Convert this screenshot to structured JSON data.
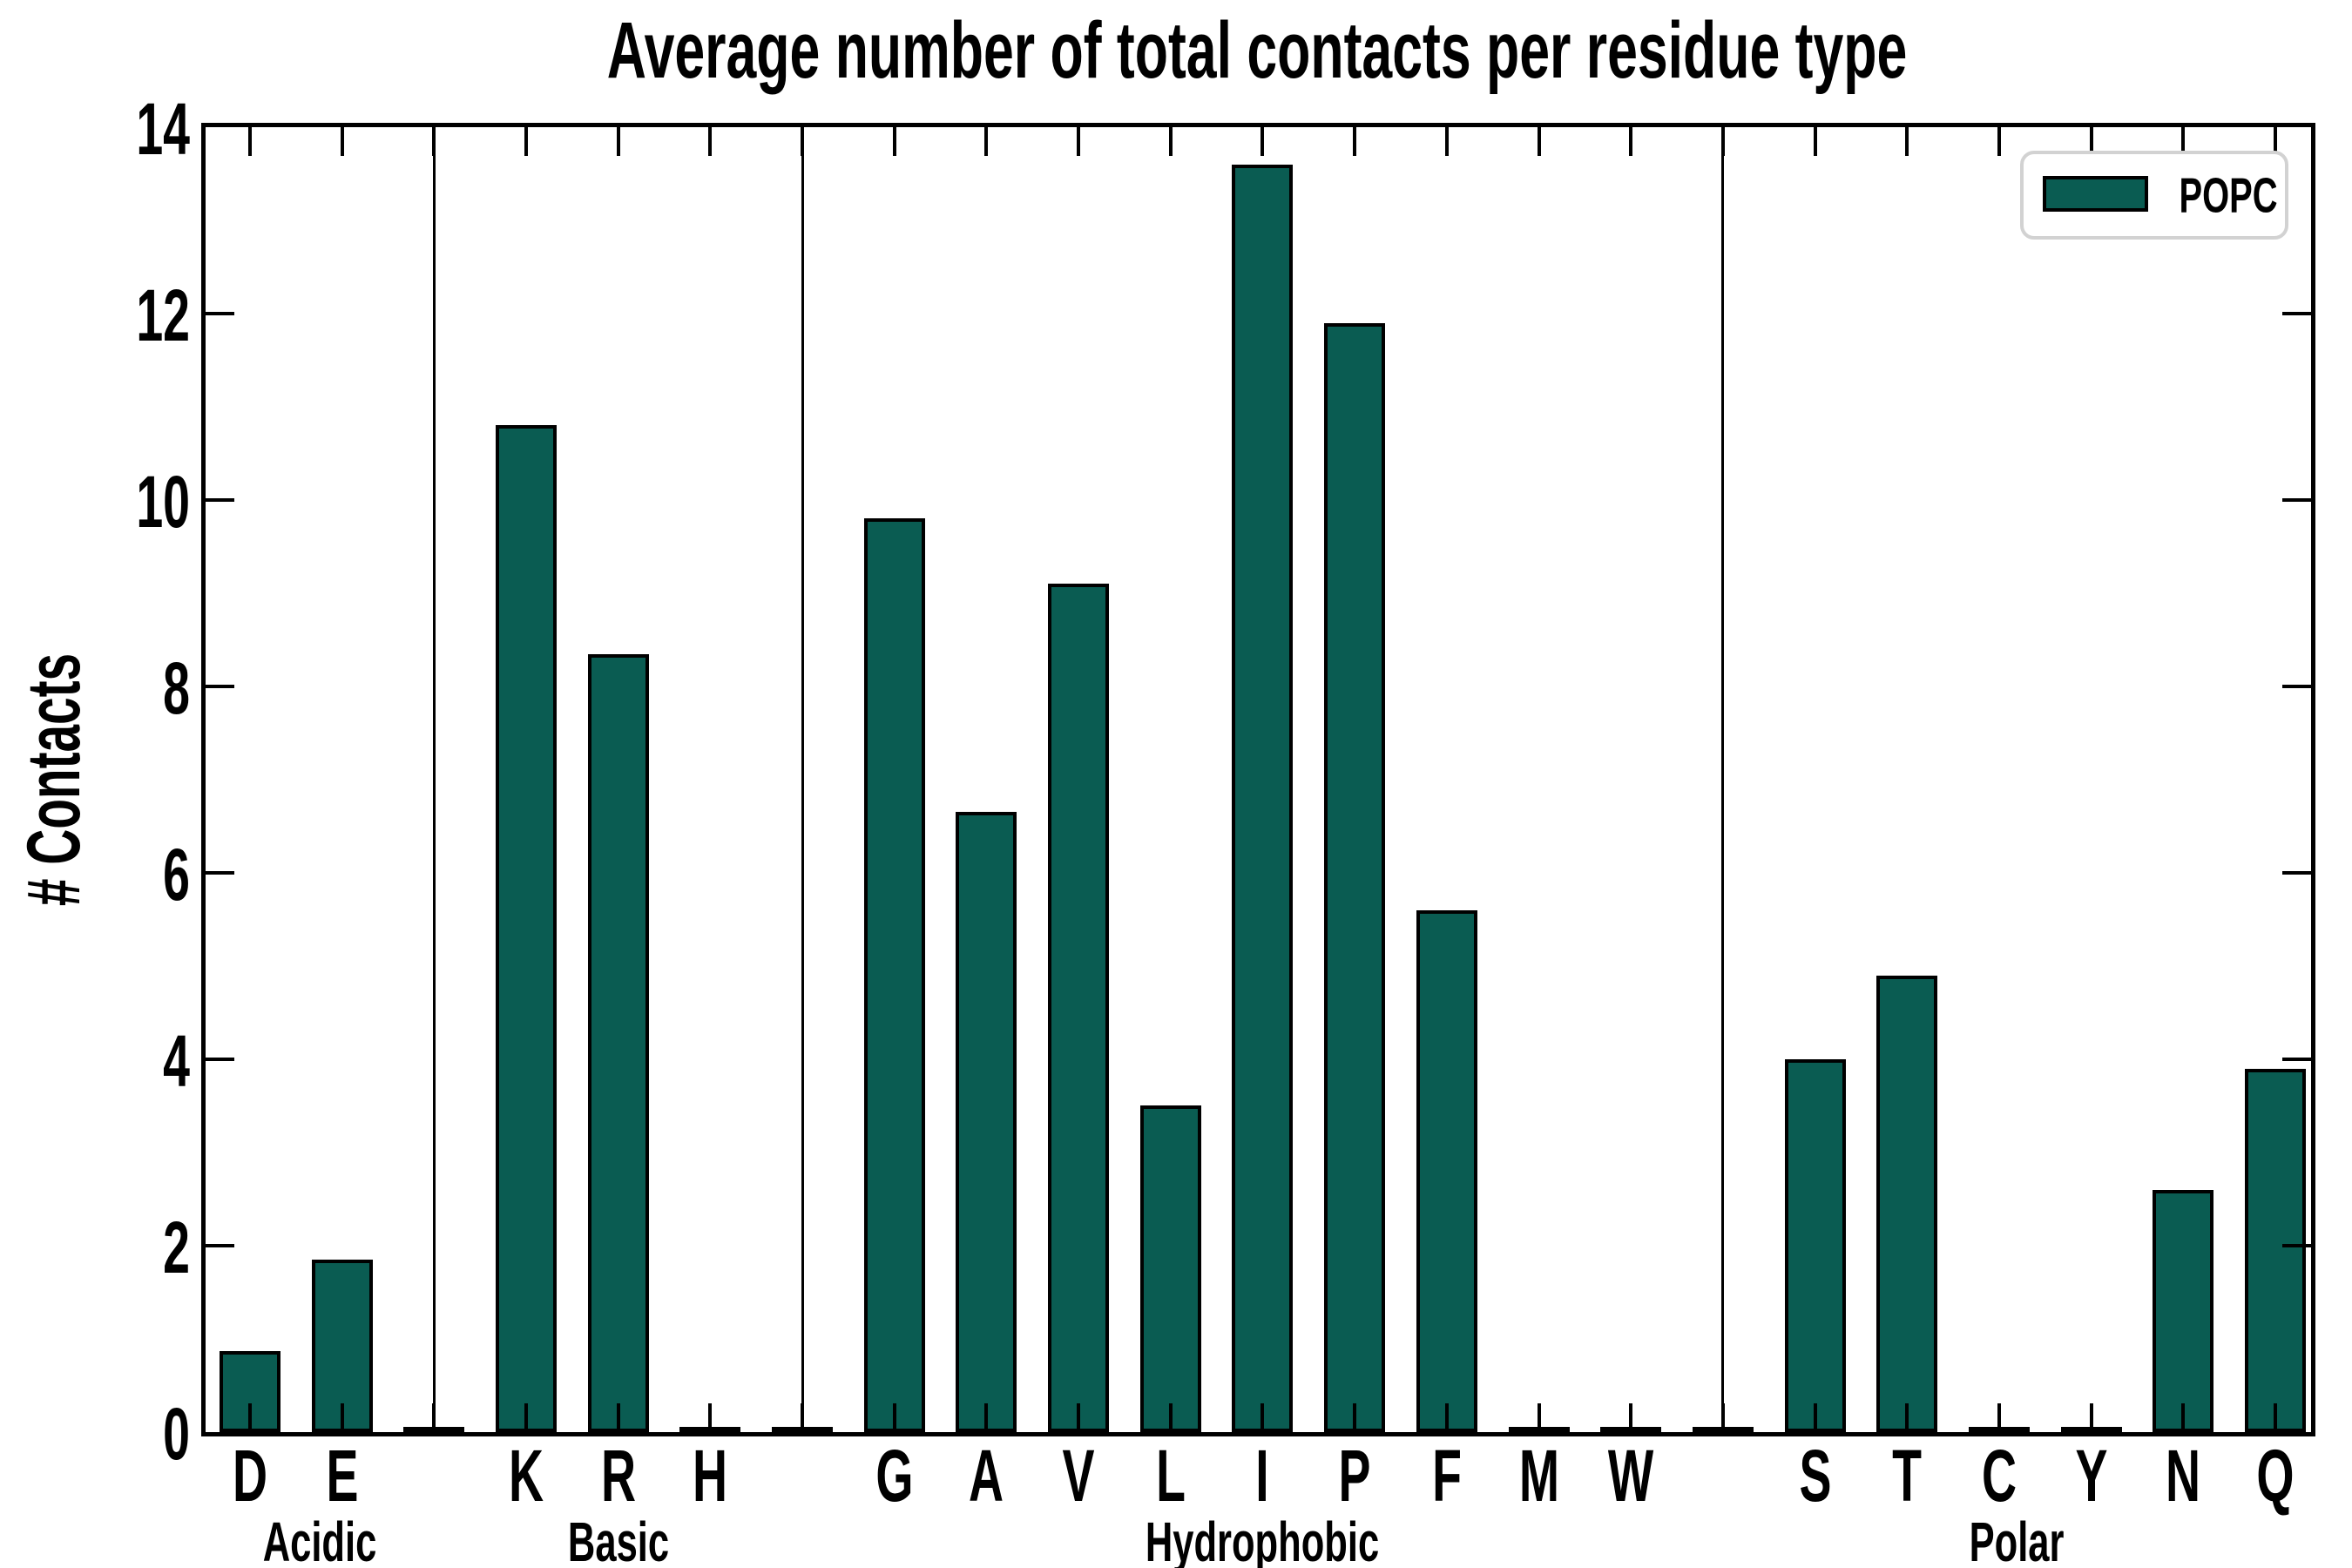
{
  "chart_data": {
    "type": "bar",
    "title": "Average number of total contacts per residue type",
    "ylabel": "# Contacts",
    "ylim": [
      0,
      14
    ],
    "yticks": [
      "0",
      "2",
      "4",
      "6",
      "8",
      "10",
      "12",
      "14"
    ],
    "grid": false,
    "legend": {
      "label": "POPC",
      "position": "upper right"
    },
    "bar_color": "#0a5c52",
    "bar_edge_color": "#000000",
    "separator_value": 0.03,
    "groups": [
      {
        "name": "Acidic",
        "categories": [
          "D",
          "E"
        ],
        "values": [
          0.87,
          1.85
        ]
      },
      {
        "name": "Basic",
        "categories": [
          "K",
          "R",
          "H"
        ],
        "values": [
          10.8,
          8.35,
          0.03
        ]
      },
      {
        "name": "Hydrophobic",
        "categories": [
          "G",
          "A",
          "V",
          "L",
          "I",
          "P",
          "F",
          "M",
          "W"
        ],
        "values": [
          9.8,
          6.65,
          9.1,
          3.5,
          13.6,
          11.9,
          5.6,
          0.03,
          0.03
        ]
      },
      {
        "name": "Polar",
        "categories": [
          "S",
          "T",
          "C",
          "Y",
          "N",
          "Q"
        ],
        "values": [
          4.0,
          4.9,
          0.03,
          0.03,
          2.6,
          3.9
        ]
      }
    ]
  }
}
